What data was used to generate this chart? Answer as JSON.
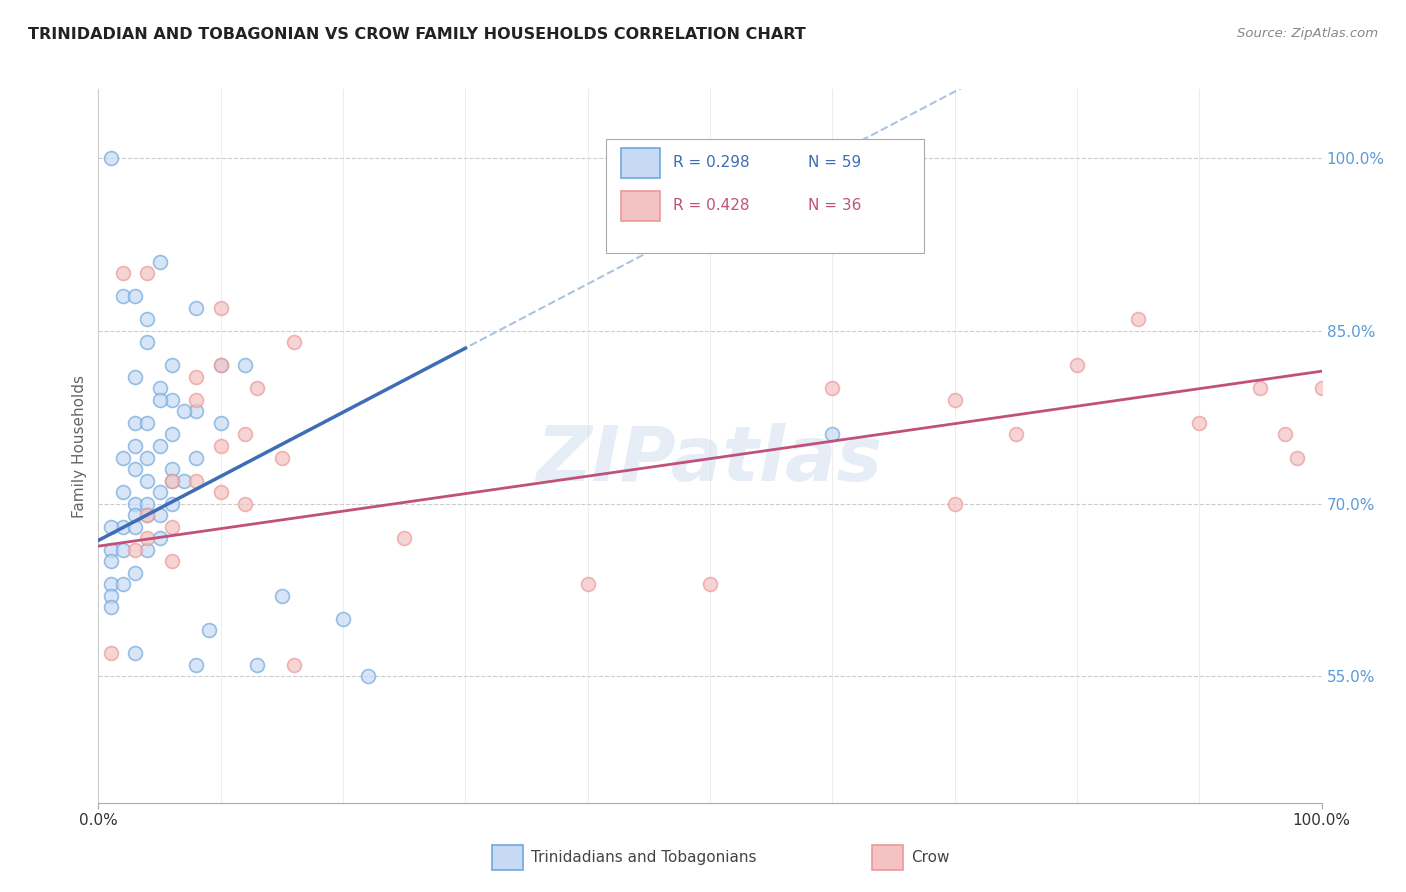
{
  "title": "TRINIDADIAN AND TOBAGONIAN VS CROW FAMILY HOUSEHOLDS CORRELATION CHART",
  "source": "Source: ZipAtlas.com",
  "ylabel": "Family Households",
  "ylabel_right_ticks": [
    "55.0%",
    "70.0%",
    "85.0%",
    "100.0%"
  ],
  "ylabel_right_values": [
    0.55,
    0.7,
    0.85,
    1.0
  ],
  "legend_color1_face": "#c7daf5",
  "legend_color1_edge": "#6fa8dc",
  "legend_color2_face": "#f4c2c2",
  "legend_color2_edge": "#ea9999",
  "dot_color1": "#6fa8dc",
  "dot_color2": "#ea9999",
  "line_color1": "#3d6db5",
  "line_color2": "#c0517a",
  "dashed_line_color": "#aac4e0",
  "watermark": "ZIPatlas",
  "background_color": "#ffffff",
  "xlim": [
    0.0,
    1.0
  ],
  "ylim": [
    0.44,
    1.06
  ],
  "blue_dots": [
    [
      0.01,
      1.0
    ],
    [
      0.05,
      0.91
    ],
    [
      0.02,
      0.88
    ],
    [
      0.03,
      0.88
    ],
    [
      0.08,
      0.87
    ],
    [
      0.04,
      0.86
    ],
    [
      0.04,
      0.84
    ],
    [
      0.06,
      0.82
    ],
    [
      0.1,
      0.82
    ],
    [
      0.12,
      0.82
    ],
    [
      0.03,
      0.81
    ],
    [
      0.05,
      0.8
    ],
    [
      0.06,
      0.79
    ],
    [
      0.05,
      0.79
    ],
    [
      0.08,
      0.78
    ],
    [
      0.07,
      0.78
    ],
    [
      0.03,
      0.77
    ],
    [
      0.04,
      0.77
    ],
    [
      0.1,
      0.77
    ],
    [
      0.06,
      0.76
    ],
    [
      0.05,
      0.75
    ],
    [
      0.03,
      0.75
    ],
    [
      0.04,
      0.74
    ],
    [
      0.02,
      0.74
    ],
    [
      0.08,
      0.74
    ],
    [
      0.06,
      0.73
    ],
    [
      0.03,
      0.73
    ],
    [
      0.06,
      0.72
    ],
    [
      0.04,
      0.72
    ],
    [
      0.07,
      0.72
    ],
    [
      0.05,
      0.71
    ],
    [
      0.02,
      0.71
    ],
    [
      0.03,
      0.7
    ],
    [
      0.06,
      0.7
    ],
    [
      0.04,
      0.7
    ],
    [
      0.04,
      0.69
    ],
    [
      0.03,
      0.69
    ],
    [
      0.05,
      0.69
    ],
    [
      0.02,
      0.68
    ],
    [
      0.03,
      0.68
    ],
    [
      0.01,
      0.68
    ],
    [
      0.05,
      0.67
    ],
    [
      0.01,
      0.66
    ],
    [
      0.02,
      0.66
    ],
    [
      0.04,
      0.66
    ],
    [
      0.01,
      0.65
    ],
    [
      0.03,
      0.64
    ],
    [
      0.01,
      0.63
    ],
    [
      0.02,
      0.63
    ],
    [
      0.01,
      0.62
    ],
    [
      0.15,
      0.62
    ],
    [
      0.01,
      0.61
    ],
    [
      0.2,
      0.6
    ],
    [
      0.09,
      0.59
    ],
    [
      0.03,
      0.57
    ],
    [
      0.08,
      0.56
    ],
    [
      0.13,
      0.56
    ],
    [
      0.22,
      0.55
    ],
    [
      0.6,
      0.76
    ]
  ],
  "pink_dots": [
    [
      0.02,
      0.9
    ],
    [
      0.04,
      0.9
    ],
    [
      0.1,
      0.87
    ],
    [
      0.16,
      0.84
    ],
    [
      0.1,
      0.82
    ],
    [
      0.08,
      0.81
    ],
    [
      0.13,
      0.8
    ],
    [
      0.08,
      0.79
    ],
    [
      0.12,
      0.76
    ],
    [
      0.1,
      0.75
    ],
    [
      0.15,
      0.74
    ],
    [
      0.06,
      0.72
    ],
    [
      0.08,
      0.72
    ],
    [
      0.1,
      0.71
    ],
    [
      0.12,
      0.7
    ],
    [
      0.04,
      0.69
    ],
    [
      0.06,
      0.68
    ],
    [
      0.04,
      0.67
    ],
    [
      0.25,
      0.67
    ],
    [
      0.03,
      0.66
    ],
    [
      0.06,
      0.65
    ],
    [
      0.01,
      0.57
    ],
    [
      0.16,
      0.56
    ],
    [
      0.4,
      0.63
    ],
    [
      0.5,
      0.63
    ],
    [
      0.6,
      0.8
    ],
    [
      0.7,
      0.79
    ],
    [
      0.7,
      0.7
    ],
    [
      0.75,
      0.76
    ],
    [
      0.8,
      0.82
    ],
    [
      0.85,
      0.86
    ],
    [
      0.9,
      0.77
    ],
    [
      0.95,
      0.8
    ],
    [
      0.97,
      0.76
    ],
    [
      0.98,
      0.74
    ],
    [
      1.0,
      0.8
    ]
  ],
  "blue_line_solid": [
    [
      0.0,
      0.668
    ],
    [
      0.3,
      0.835
    ]
  ],
  "blue_line_dashed": [
    [
      0.0,
      0.668
    ],
    [
      1.0,
      1.225
    ]
  ],
  "pink_line": [
    [
      0.0,
      0.663
    ],
    [
      1.0,
      0.815
    ]
  ]
}
